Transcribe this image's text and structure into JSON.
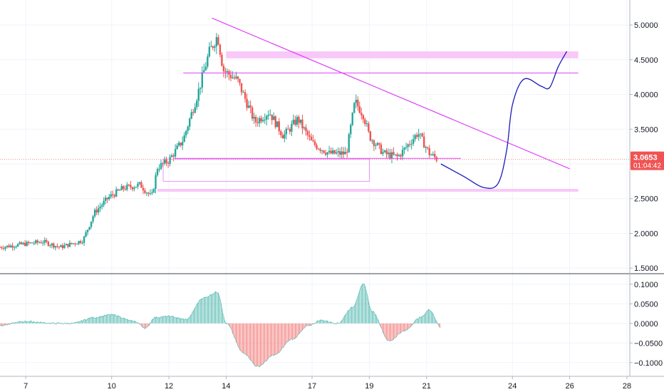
{
  "colors": {
    "up": "#26a69a",
    "down": "#ef5350",
    "trend": "#e040fb",
    "zone": "#f8c8f8",
    "projection": "#1a1ab8",
    "price_line": "#f28b82",
    "price_label_bg": "#f05353",
    "grid": "#f0f3fa"
  },
  "chart_data": [
    {
      "type": "candlestick",
      "price_axis": {
        "ticks": [
          "5.0000",
          "4.5000",
          "4.0000",
          "3.5000",
          "3.0000",
          "2.5000",
          "2.0000",
          "1.5000"
        ],
        "ylim": [
          1.43,
          5.36
        ]
      },
      "time_axis": {
        "ticks": [
          "7",
          "10",
          "12",
          "14",
          "17",
          "19",
          "21",
          "24",
          "26",
          "28"
        ],
        "xlim": [
          6.1,
          28.1
        ]
      },
      "current_price": "3.0653",
      "countdown": "01:04:42",
      "ohlc_waypoints": [
        {
          "day": 6.1,
          "price": 1.8
        },
        {
          "day": 7.0,
          "price": 1.85
        },
        {
          "day": 7.6,
          "price": 1.88
        },
        {
          "day": 8.2,
          "price": 1.8
        },
        {
          "day": 9.0,
          "price": 1.9
        },
        {
          "day": 9.4,
          "price": 2.3
        },
        {
          "day": 9.9,
          "price": 2.52
        },
        {
          "day": 10.4,
          "price": 2.65
        },
        {
          "day": 11.0,
          "price": 2.7
        },
        {
          "day": 11.4,
          "price": 2.52
        },
        {
          "day": 11.6,
          "price": 2.95
        },
        {
          "day": 12.0,
          "price": 3.05
        },
        {
          "day": 12.5,
          "price": 3.35
        },
        {
          "day": 13.0,
          "price": 4.0
        },
        {
          "day": 13.4,
          "price": 4.6
        },
        {
          "day": 13.7,
          "price": 4.85
        },
        {
          "day": 13.9,
          "price": 4.35
        },
        {
          "day": 14.4,
          "price": 4.2
        },
        {
          "day": 15.0,
          "price": 3.6
        },
        {
          "day": 15.5,
          "price": 3.75
        },
        {
          "day": 16.0,
          "price": 3.4
        },
        {
          "day": 16.5,
          "price": 3.65
        },
        {
          "day": 17.0,
          "price": 3.3
        },
        {
          "day": 17.6,
          "price": 3.15
        },
        {
          "day": 18.2,
          "price": 3.15
        },
        {
          "day": 18.5,
          "price": 3.9
        },
        {
          "day": 18.8,
          "price": 3.7
        },
        {
          "day": 19.0,
          "price": 3.4
        },
        {
          "day": 19.5,
          "price": 3.15
        },
        {
          "day": 20.0,
          "price": 3.1
        },
        {
          "day": 20.7,
          "price": 3.45
        },
        {
          "day": 21.1,
          "price": 3.15
        },
        {
          "day": 21.4,
          "price": 3.06
        }
      ],
      "drawings": {
        "trendline": [
          {
            "day": 13.5,
            "price": 5.1
          },
          {
            "day": 26.0,
            "price": 2.93
          }
        ],
        "resistance_line": {
          "price": 4.31,
          "from_day": 12.5,
          "to_day": 26.3
        },
        "resistance_zone": {
          "price_low": 4.52,
          "price_high": 4.62,
          "from_day": 14.0,
          "to_day": 26.3
        },
        "support_zone": {
          "price_low": 2.6,
          "price_high": 2.64,
          "from_day": 11.6,
          "to_day": 26.3
        },
        "support_line": {
          "price": 3.08,
          "from_day": 12.2,
          "to_day": 22.2
        },
        "range_box": {
          "price_low": 2.75,
          "price_high": 3.07,
          "from_day": 11.8,
          "to_day": 19.0
        },
        "projection_path": [
          {
            "day": 21.5,
            "price": 3.0
          },
          {
            "day": 22.3,
            "price": 2.82
          },
          {
            "day": 23.0,
            "price": 2.66
          },
          {
            "day": 23.5,
            "price": 2.72
          },
          {
            "day": 23.8,
            "price": 3.2
          },
          {
            "day": 24.0,
            "price": 3.85
          },
          {
            "day": 24.4,
            "price": 4.22
          },
          {
            "day": 25.0,
            "price": 4.12
          },
          {
            "day": 25.3,
            "price": 4.1
          },
          {
            "day": 25.6,
            "price": 4.4
          },
          {
            "day": 25.9,
            "price": 4.62
          }
        ]
      }
    },
    {
      "type": "histogram",
      "ticks": [
        "0.1000",
        "0.0500",
        "0.0000",
        "−0.0500",
        "−0.1000"
      ],
      "ylim": [
        -0.135,
        0.125
      ],
      "x": [
        6.1,
        7.0,
        8.0,
        8.6,
        9.4,
        10.0,
        10.8,
        11.2,
        11.5,
        12.0,
        12.6,
        13.2,
        13.7,
        14.0,
        14.6,
        15.1,
        15.7,
        16.3,
        16.9,
        17.3,
        17.9,
        18.4,
        18.8,
        19.1,
        19.7,
        20.2,
        20.8,
        21.1,
        21.5
      ],
      "values": [
        -0.005,
        0.005,
        0.0,
        0.0,
        0.015,
        0.022,
        0.005,
        -0.012,
        0.015,
        0.018,
        0.01,
        0.065,
        0.08,
        0.0,
        -0.075,
        -0.11,
        -0.08,
        -0.04,
        -0.005,
        0.008,
        0.0,
        0.04,
        0.1,
        0.03,
        -0.045,
        -0.02,
        0.015,
        0.035,
        -0.01
      ]
    }
  ]
}
